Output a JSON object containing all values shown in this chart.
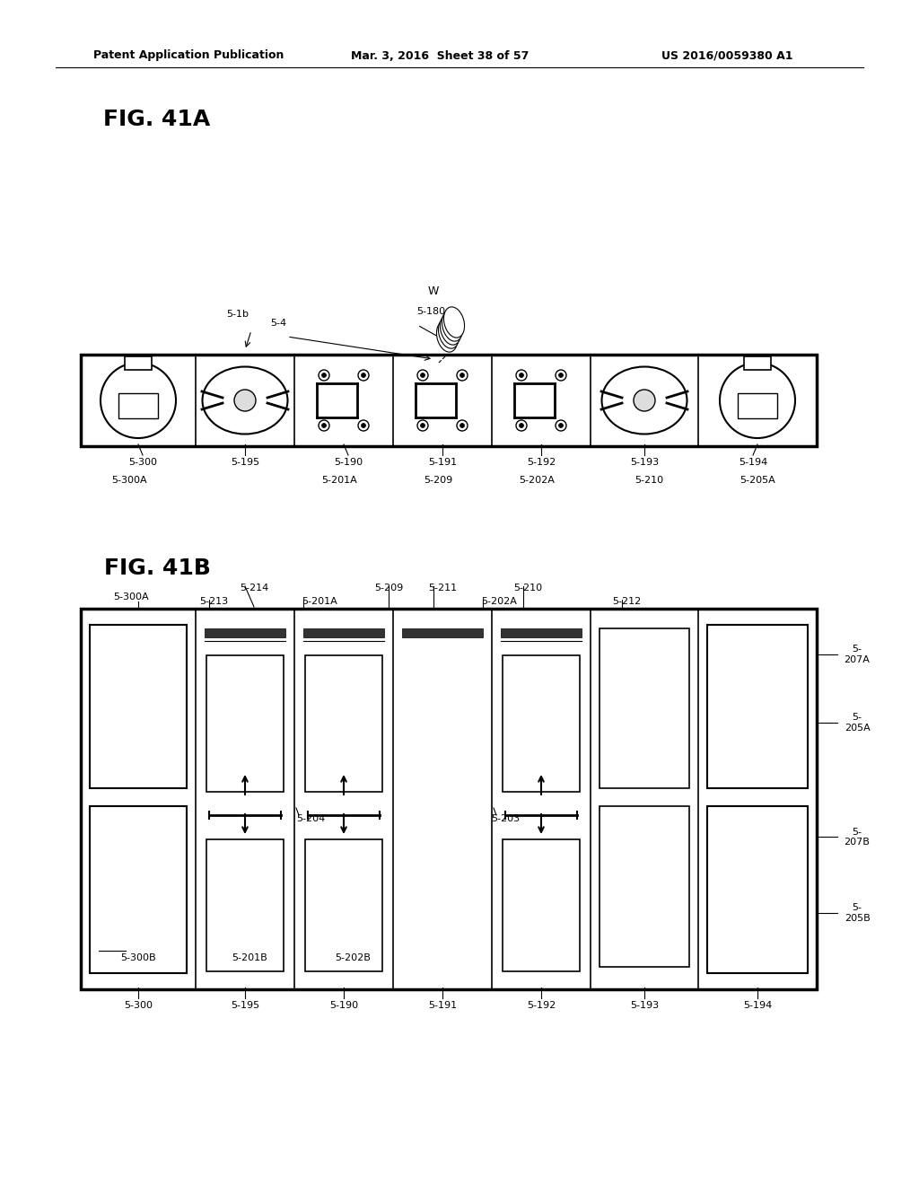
{
  "bg_color": "#ffffff",
  "header_left": "Patent Application Publication",
  "header_mid": "Mar. 3, 2016  Sheet 38 of 57",
  "header_right": "US 2016/0059380 A1",
  "fig_41a_label": "FIG. 41A",
  "fig_41b_label": "FIG. 41B",
  "fig41a_labels_bottom_row1": [
    "5-300",
    "5-195",
    "5-190",
    "5-191",
    "5-192",
    "5-193",
    "5-194"
  ],
  "fig41a_labels_bottom_row2_items": [
    {
      "label": "5-300A",
      "x": 0
    },
    {
      "label": "5-201A",
      "x": 2
    },
    {
      "label": "5-209",
      "x": 3
    },
    {
      "label": "5-202A",
      "x": 4
    },
    {
      "label": "5-210",
      "x": 5
    },
    {
      "label": "5-205A",
      "x": 6
    }
  ],
  "fig41b_top_labels": [
    {
      "label": "5-300A",
      "col": 0,
      "row": 1
    },
    {
      "label": "5-213",
      "col": 1,
      "row": 0
    },
    {
      "label": "5-214",
      "col": 1,
      "row": 1
    },
    {
      "label": "5-201A",
      "col": 2,
      "row": 0
    },
    {
      "label": "5-209",
      "col": 2,
      "row": 1
    },
    {
      "label": "5-211",
      "col": 3,
      "row": 1
    },
    {
      "label": "5-202A",
      "col": 3,
      "row": 0
    },
    {
      "label": "5-210",
      "col": 4,
      "row": 1
    },
    {
      "label": "5-212",
      "col": 5,
      "row": 0
    }
  ],
  "fig41b_right_labels": [
    "5-\n207A",
    "5-\n205A",
    "5-\n207B",
    "5-\n205B"
  ],
  "fig41b_inner_labels": [
    "5-300B",
    "5-201B",
    "5-202B"
  ],
  "fig41b_mid_labels": [
    "5-204",
    "5-203"
  ],
  "fig41b_bottom_labels": [
    "5-300",
    "5-195",
    "5-190",
    "5-191",
    "5-192",
    "5-193",
    "5-194"
  ]
}
